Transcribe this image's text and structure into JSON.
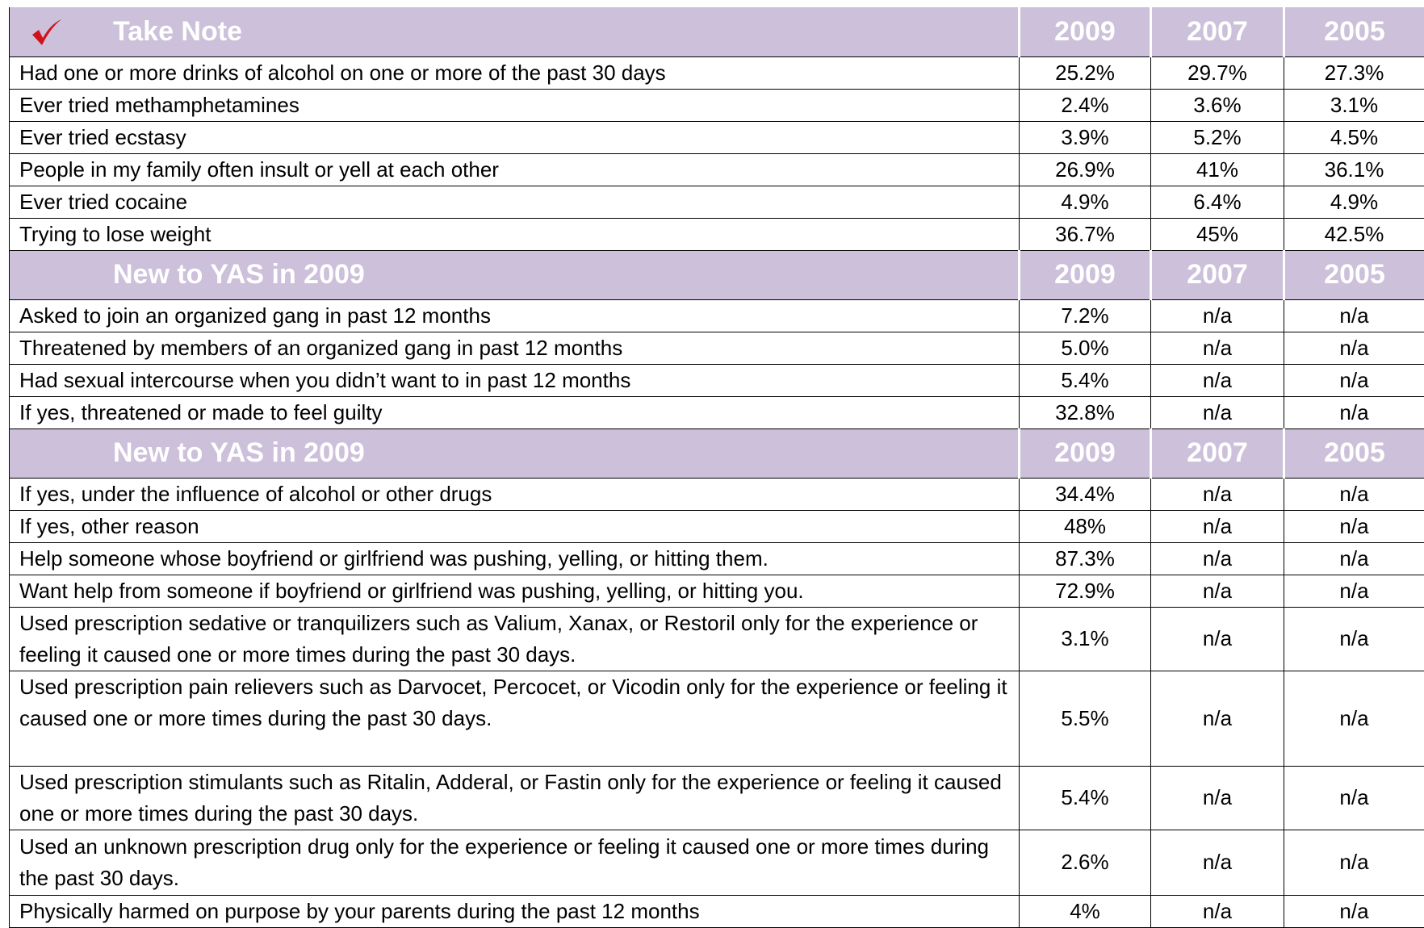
{
  "sections": [
    {
      "header": [
        "Take Note",
        "2009",
        "2007",
        "2005"
      ],
      "rows": [
        [
          "Had one or more drinks of alcohol on one or more of the past 30 days",
          "25.2%",
          "29.7%",
          "27.3%"
        ],
        [
          "Ever tried methamphetamines",
          "2.4%",
          "3.6%",
          "3.1%"
        ],
        [
          "Ever tried ecstasy",
          "3.9%",
          "5.2%",
          "4.5%"
        ],
        [
          "People in my family often insult or yell at each other",
          "26.9%",
          "41%",
          "36.1%"
        ],
        [
          "Ever tried cocaine",
          "4.9%",
          "6.4%",
          "4.9%"
        ],
        [
          "Trying to lose weight",
          "36.7%",
          "45%",
          "42.5%"
        ]
      ]
    },
    {
      "header": [
        "New to YAS in 2009",
        "2009",
        "2007",
        "2005"
      ],
      "rows": [
        [
          "Asked to join an organized gang in past 12 months",
          "7.2%",
          "n/a",
          "n/a"
        ],
        [
          "Threatened by members of an organized gang in past 12 months",
          "5.0%",
          "n/a",
          "n/a"
        ],
        [
          "Had sexual intercourse when you didn’t want to in past 12 months",
          "5.4%",
          "n/a",
          "n/a"
        ],
        [
          "If yes, threatened or made to feel guilty",
          "32.8%",
          "n/a",
          "n/a"
        ]
      ]
    },
    {
      "header": [
        "New to YAS in 2009",
        "2009",
        "2007",
        "2005"
      ],
      "rows": [
        [
          "If yes, under the influence of alcohol or other drugs",
          "34.4%",
          "n/a",
          "n/a"
        ],
        [
          "If yes, other reason",
          "48%",
          "n/a",
          "n/a"
        ],
        [
          "Help someone whose boyfriend or girlfriend was pushing, yelling, or hitting them.",
          "87.3%",
          "n/a",
          "n/a"
        ],
        [
          "Want help from someone if boyfriend or girlfriend was pushing, yelling, or hitting you.",
          "72.9%",
          "n/a",
          "n/a"
        ],
        [
          "Used prescription sedative or tranquilizers such as Valium, Xanax, or Restoril only for the experience or feeling it caused one or more times during the past 30 days.",
          "3.1%",
          "n/a",
          "n/a"
        ],
        [
          "Used prescription pain relievers such as Darvocet, Percocet, or Vicodin only for the experience or feeling it caused one or more times during the past 30 days.",
          "5.5%",
          "n/a",
          "n/a"
        ],
        [
          "Used prescription stimulants such as Ritalin, Adderal, or Fastin only for the experience or feeling it caused one or more times during the past 30 days.",
          "5.4%",
          "n/a",
          "n/a"
        ],
        [
          "Used an unknown prescription drug only for the experience or feeling it caused one or more times during the past 30 days.",
          "2.6%",
          "n/a",
          "n/a"
        ],
        [
          "Physically harmed on purpose by your parents during the past 12 months",
          "4%",
          "n/a",
          "n/a"
        ]
      ]
    }
  ]
}
